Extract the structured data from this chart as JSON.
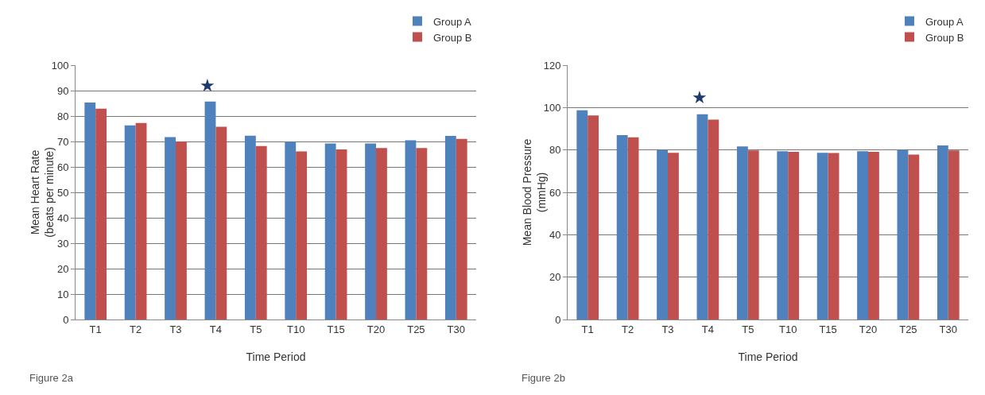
{
  "chart_data": [
    {
      "type": "bar",
      "xlabel": "Time Period",
      "ylabel": "Mean Heart Rate\n(beats per minute)",
      "categories": [
        "T1",
        "T2",
        "T3",
        "T4",
        "T5",
        "T10",
        "T15",
        "T20",
        "T25",
        "T30"
      ],
      "series": [
        {
          "name": "Group A",
          "color": "#4f81bd",
          "values": [
            85.3,
            76.3,
            71.7,
            85.7,
            72.3,
            69.9,
            69.2,
            69.2,
            70.5,
            72.2
          ]
        },
        {
          "name": "Group B",
          "color": "#c0504d",
          "values": [
            82.9,
            77.3,
            69.9,
            75.8,
            68.2,
            66.1,
            66.9,
            67.4,
            67.4,
            71.0
          ]
        }
      ],
      "ylim": [
        0,
        100
      ],
      "yticks": [
        0,
        10,
        20,
        30,
        40,
        50,
        60,
        70,
        80,
        90,
        100
      ],
      "grid": "y",
      "legend": "top right",
      "annotations": [
        "★",
        "Figure 2a"
      ]
    },
    {
      "type": "bar",
      "xlabel": "Time Period",
      "ylabel": "Mean Blood Pressure\n(mmHg)",
      "categories": [
        "T1",
        "T2",
        "T3",
        "T4",
        "T5",
        "T10",
        "T15",
        "T20",
        "T25",
        "T30"
      ],
      "series": [
        {
          "name": "Group A",
          "color": "#4f81bd",
          "values": [
            98.7,
            87.0,
            80.0,
            96.8,
            81.7,
            79.4,
            78.7,
            79.4,
            80.0,
            82.1
          ]
        },
        {
          "name": "Group B",
          "color": "#c0504d",
          "values": [
            96.3,
            86.0,
            78.7,
            94.3,
            79.8,
            79.1,
            78.6,
            79.1,
            77.8,
            79.8
          ]
        }
      ],
      "ylim": [
        0,
        120
      ],
      "yticks": [
        0,
        20,
        40,
        60,
        80,
        100,
        120
      ],
      "grid": "y",
      "legend": "top right",
      "annotations": [
        "★",
        "Figure 2b"
      ]
    }
  ]
}
